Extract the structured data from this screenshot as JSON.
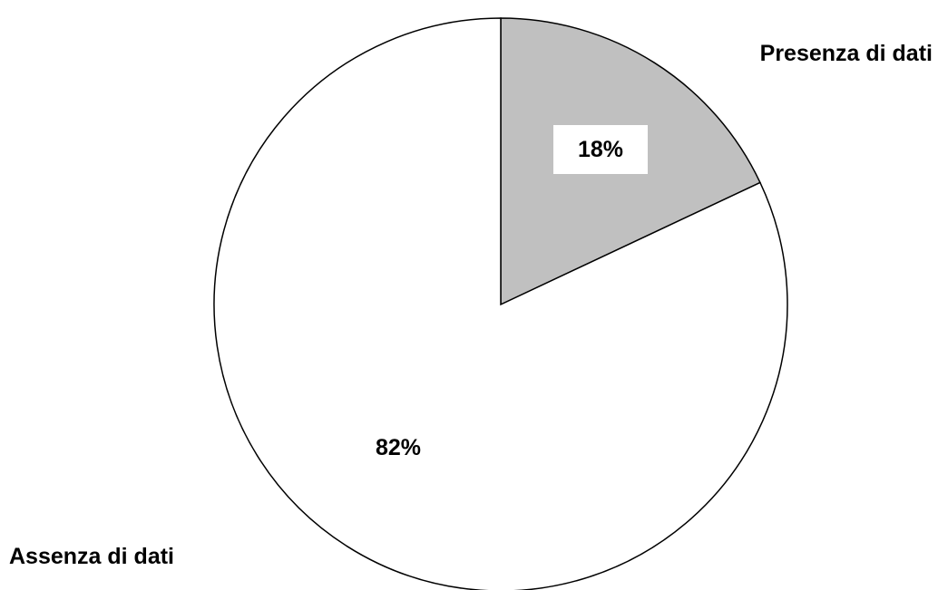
{
  "chart_data": {
    "type": "pie",
    "title": "",
    "slices": [
      {
        "label": "Presenza di dati",
        "value": 18,
        "value_label": "18%",
        "color": "#c0c0c0"
      },
      {
        "label": "Assenza di dati",
        "value": 82,
        "value_label": "82%",
        "color": "#ffffff"
      }
    ],
    "start_angle": "12 o'clock",
    "direction": "clockwise",
    "legend": "none",
    "outline_color": "#000000"
  }
}
